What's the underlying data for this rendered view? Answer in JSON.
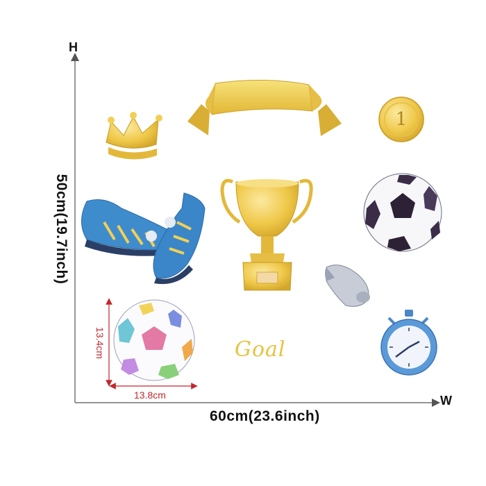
{
  "axes": {
    "height_letter": "H",
    "width_letter": "W",
    "height_label": "50cm(19.7inch)",
    "width_label": "60cm(23.6inch)"
  },
  "colorful_ball": {
    "height_label": "13.4cm",
    "width_label": "13.8cm"
  },
  "stickers": {
    "goal_text": "Goal",
    "medal_number": "1"
  },
  "colors": {
    "gold": "#f2cf55",
    "gold_dark": "#d4a72c",
    "blue": "#3f8ccc",
    "dimension_red": "#c3262d",
    "axis_gray": "#555555"
  },
  "icons": [
    "crown-icon",
    "ribbon-banner-icon",
    "gold-medal-icon",
    "football-boots-icon",
    "trophy-cup-icon",
    "soccer-ball-icon",
    "whistle-icon",
    "colorful-soccer-ball-icon",
    "stopwatch-icon"
  ]
}
